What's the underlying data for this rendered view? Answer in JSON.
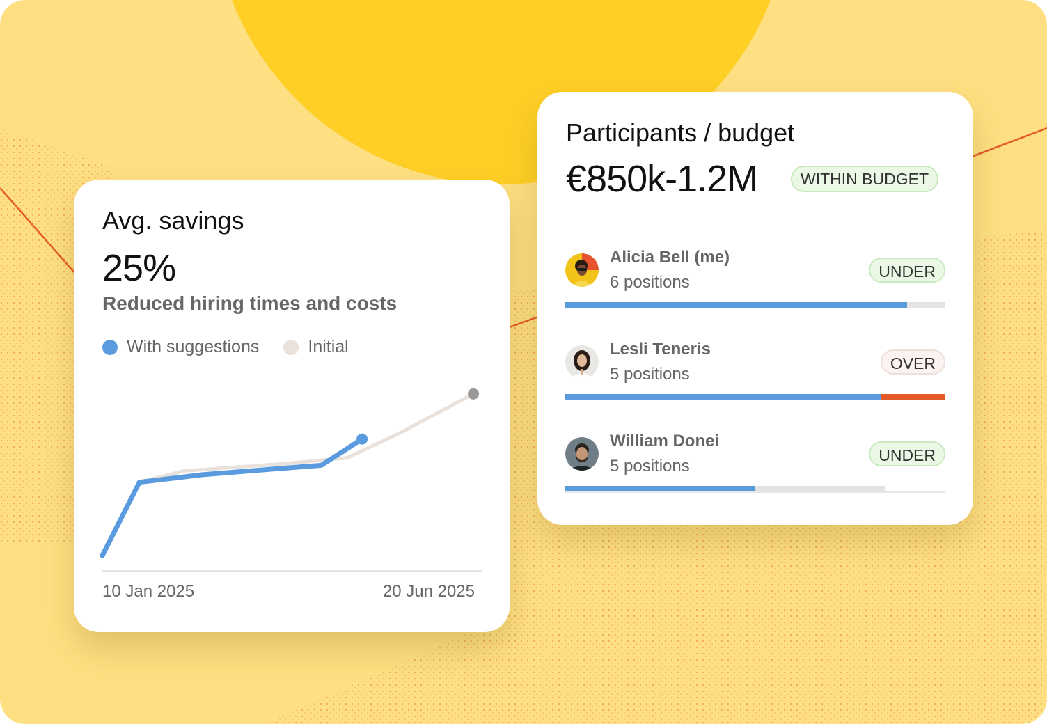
{
  "colors": {
    "background": "#fee082",
    "sun": "#ffcf26",
    "accent_line": "#e55a2b",
    "series_primary": "#5a9be0",
    "series_initial": "#e8e1dc",
    "initial_end_dot": "#999999",
    "under_bar": "#5a9be0",
    "over_bar": "#e55a2b"
  },
  "savings_card": {
    "title": "Avg. savings",
    "value": "25%",
    "subtitle": "Reduced hiring times and costs",
    "legend": {
      "primary": "With suggestions",
      "secondary": "Initial"
    }
  },
  "chart_data": {
    "type": "line",
    "x_start_label": "10 Jan 2025",
    "x_end_label": "20 Jun 2025",
    "series": [
      {
        "name": "With suggestions",
        "values": [
          0,
          0.39,
          0.43,
          0.46,
          0.48,
          0.62
        ],
        "x": [
          0,
          0.1,
          0.27,
          0.46,
          0.59,
          0.7
        ]
      },
      {
        "name": "Initial",
        "values": [
          0,
          0.39,
          0.45,
          0.49,
          0.52,
          0.65,
          0.86
        ],
        "x": [
          0,
          0.1,
          0.22,
          0.5,
          0.66,
          0.8,
          1.0
        ]
      }
    ]
  },
  "budget_card": {
    "title": "Participants / budget",
    "value": "€850k-1.2M",
    "status_badge": "WITHIN BUDGET",
    "participants": [
      {
        "name": "Alicia Bell (me)",
        "positions": "6 positions",
        "status": "UNDER",
        "progress": 0.9,
        "track": 1.0,
        "over": 0,
        "avatar_icon": "avatar-alicia"
      },
      {
        "name": "Lesli Teneris",
        "positions": "5 positions",
        "status": "OVER",
        "progress": 0.83,
        "track": 1.0,
        "over": 0.17,
        "avatar_icon": "avatar-lesli"
      },
      {
        "name": "William Donei",
        "positions": "5 positions",
        "status": "UNDER",
        "progress": 0.5,
        "track": 0.84,
        "over": 0,
        "avatar_icon": "avatar-william"
      }
    ]
  }
}
